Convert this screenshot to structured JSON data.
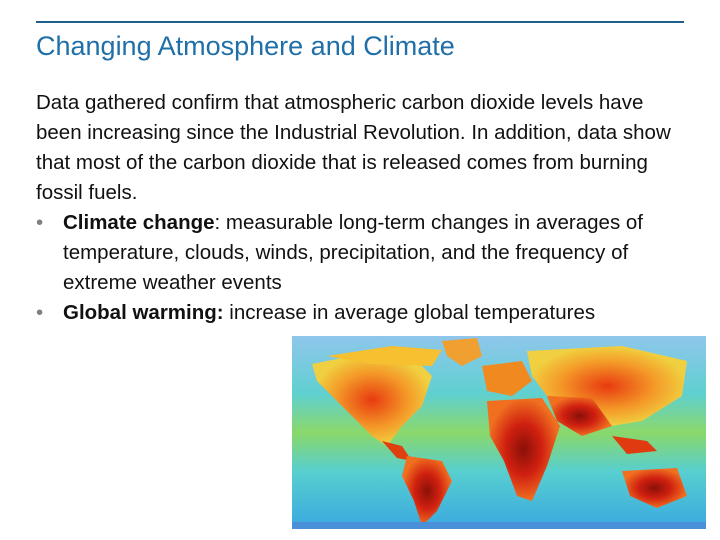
{
  "slide": {
    "title": "Changing Atmosphere and Climate",
    "intro": "Data gathered confirm that atmospheric carbon dioxide levels have been increasing since the Industrial Revolution. In addition, data show that most of the carbon dioxide that is released comes from burning fossil fuels.",
    "bullets": [
      {
        "term": "Climate change",
        "rest": ": measurable long-term changes in averages of temperature, clouds, winds, precipitation, and the frequency of extreme weather events"
      },
      {
        "term": "Global warming:",
        "rest": " increase in average global temperatures"
      }
    ],
    "bullet_glyph": "•",
    "colors": {
      "title": "#1f6fa8",
      "rule": "#1f5f8b",
      "bullet": "#7f7f7f"
    }
  },
  "map_image": {
    "icon": "world-temperature-map",
    "palette": [
      "#7ec8e8",
      "#5fd6c8",
      "#e8f050",
      "#f6b030",
      "#f07020",
      "#d02010",
      "#8a1008"
    ]
  }
}
